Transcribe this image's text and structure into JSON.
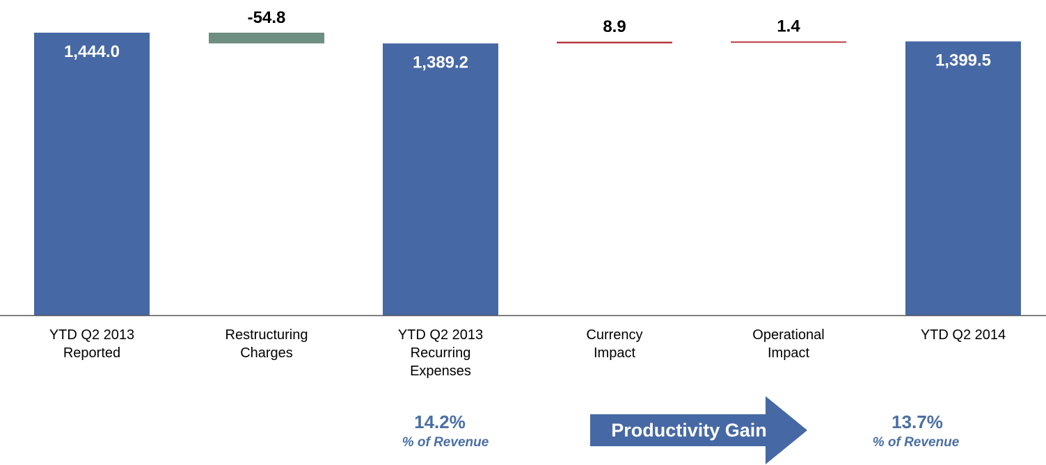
{
  "chart_data": {
    "type": "bar",
    "subtype": "waterfall",
    "title": "",
    "xlabel": "",
    "ylabel": "",
    "grid": false,
    "legend": "none",
    "categories": [
      [
        "YTD Q2 2013",
        "Reported"
      ],
      [
        "Restructuring",
        "Charges"
      ],
      [
        "YTD Q2 2013",
        "Recurring",
        "Expenses"
      ],
      [
        "Currency",
        "Impact"
      ],
      [
        "Operational",
        "Impact"
      ],
      [
        "YTD Q2 2014"
      ]
    ],
    "values": [
      1444.0,
      -54.8,
      1389.2,
      8.9,
      1.4,
      1399.5
    ],
    "value_labels": [
      "1,444.0",
      "-54.8",
      "1,389.2",
      "8.9",
      "1.4",
      "1,399.5"
    ],
    "bar_kinds": [
      "total",
      "delta",
      "total",
      "delta",
      "delta",
      "total"
    ],
    "colors": {
      "total": "#4668a4",
      "decrease": "#6d8e80",
      "increase": "#b8393f",
      "axis": "#555555",
      "annotation": "#4a6fa5",
      "arrow": "#4668a4"
    },
    "ylim": [
      0,
      1460
    ]
  },
  "annotations": {
    "left": {
      "value": "14.2%",
      "sub": "% of Revenue"
    },
    "arrow": "Productivity Gain",
    "right": {
      "value": "13.7%",
      "sub": "% of Revenue"
    }
  }
}
